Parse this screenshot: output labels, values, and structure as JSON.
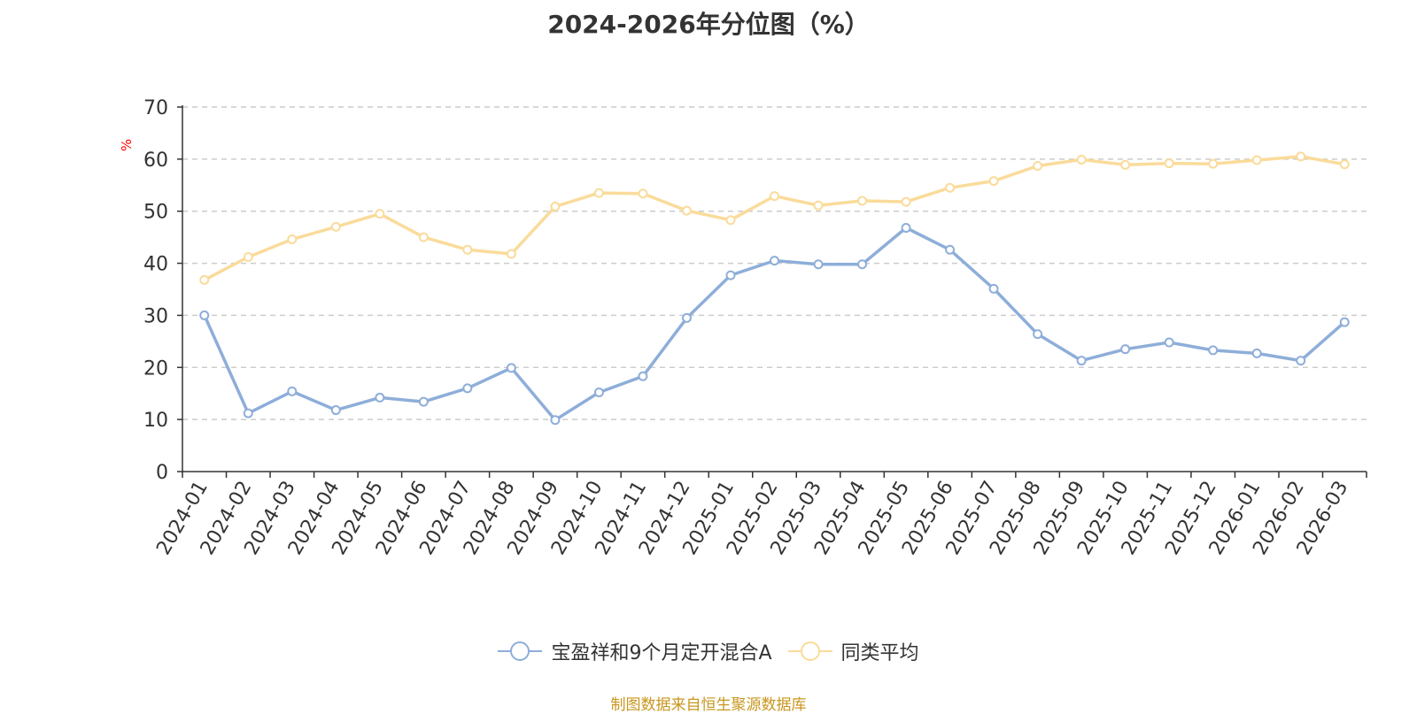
{
  "chart_data": {
    "type": "line",
    "title": "2024-2026年分位图（%）",
    "ylabel": "%",
    "xlabel": "",
    "ylim": [
      0,
      70
    ],
    "yticks": [
      0,
      10,
      20,
      30,
      40,
      50,
      60,
      70
    ],
    "grid": true,
    "legend_position": "bottom",
    "categories": [
      "2024-01",
      "2024-02",
      "2024-03",
      "2024-04",
      "2024-05",
      "2024-06",
      "2024-07",
      "2024-08",
      "2024-09",
      "2024-10",
      "2024-11",
      "2024-12",
      "2025-01",
      "2025-02",
      "2025-03",
      "2025-04",
      "2025-05",
      "2025-06",
      "2025-07",
      "2025-08",
      "2025-09",
      "2025-10",
      "2025-11",
      "2025-12",
      "2026-01",
      "2026-02",
      "2026-03"
    ],
    "series": [
      {
        "name": "宝盈祥和9个月定开混合A",
        "color": "#8eaed9",
        "values": [
          30.0,
          11.2,
          15.4,
          11.8,
          14.2,
          13.4,
          16.0,
          19.9,
          9.9,
          15.2,
          18.3,
          29.5,
          37.7,
          40.5,
          39.8,
          39.8,
          46.8,
          42.6,
          35.1,
          26.4,
          21.3,
          23.5,
          24.8,
          23.3,
          22.7,
          21.3,
          28.7
        ]
      },
      {
        "name": "同类平均",
        "color": "#fadb9a",
        "values": [
          36.8,
          41.2,
          44.6,
          47.0,
          49.5,
          45.0,
          42.6,
          41.8,
          50.9,
          53.5,
          53.4,
          50.1,
          48.3,
          52.9,
          51.1,
          52.0,
          51.8,
          54.5,
          55.8,
          58.7,
          59.9,
          58.9,
          59.2,
          59.1,
          59.8,
          60.5,
          59.0
        ]
      }
    ]
  },
  "source_note": "制图数据来自恒生聚源数据库",
  "colors": {
    "axis": "#333333",
    "grid": "#cccccc",
    "ylabel": "#ff0000",
    "source": "#c8961e"
  }
}
